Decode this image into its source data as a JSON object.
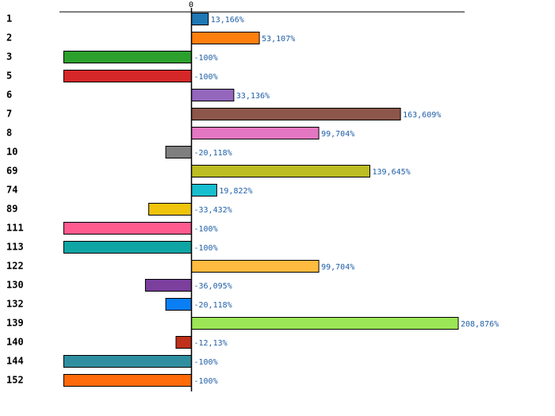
{
  "chart_data": {
    "type": "bar",
    "orientation": "horizontal",
    "title": "",
    "xlabel": "",
    "ylabel": "",
    "xlim": [
      -100,
      215
    ],
    "zero_tick_label": "0",
    "grid": false,
    "legend": "none",
    "categories": [
      "1",
      "2",
      "3",
      "5",
      "6",
      "7",
      "8",
      "10",
      "69",
      "74",
      "89",
      "111",
      "113",
      "122",
      "130",
      "132",
      "139",
      "140",
      "144",
      "152"
    ],
    "values": [
      13.166,
      53.107,
      -100,
      -100,
      33.136,
      163.609,
      99.704,
      -20.118,
      139.645,
      19.822,
      -33.432,
      -100,
      -100,
      99.704,
      -36.095,
      -20.118,
      208.876,
      -12.13,
      -100,
      -100
    ],
    "value_labels": [
      "13,166%",
      "53,107%",
      "-100%",
      "-100%",
      "33,136%",
      "163,609%",
      "99,704%",
      "-20,118%",
      "139,645%",
      "19,822%",
      "-33,432%",
      "-100%",
      "-100%",
      "99,704%",
      "-36,095%",
      "-20,118%",
      "208,876%",
      "-12,13%",
      "-100%",
      "-100%"
    ],
    "colors": [
      "#1f77b4",
      "#ff7f0e",
      "#2ca02c",
      "#d62728",
      "#9467bd",
      "#8c564b",
      "#e377c2",
      "#7f7f7f",
      "#bcbd22",
      "#17becf",
      "#f0c40c",
      "#ff5b8f",
      "#0fa5a5",
      "#ffbb40",
      "#7b3f9e",
      "#0a7ff5",
      "#9be656",
      "#c0301c",
      "#2f8fa0",
      "#ff6a0a"
    ]
  }
}
